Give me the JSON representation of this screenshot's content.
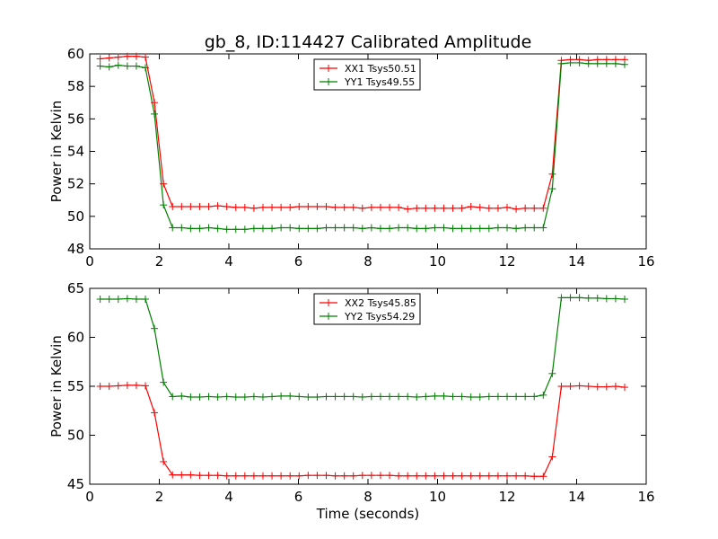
{
  "figure": {
    "title": "gb_8, ID:114427 Calibrated Amplitude"
  },
  "colors": {
    "red": "#ff0000",
    "green": "#008000"
  },
  "chart_data": [
    {
      "type": "line",
      "title": "gb_8, ID:114427 Calibrated Amplitude",
      "xlabel": "",
      "ylabel": "Power in Kelvin",
      "xlim": [
        0,
        16
      ],
      "ylim": [
        48,
        60
      ],
      "xticks": [
        0,
        2,
        4,
        6,
        8,
        10,
        12,
        14,
        16
      ],
      "yticks": [
        48,
        50,
        52,
        54,
        56,
        58,
        60
      ],
      "grid": false,
      "legend_position": "top-center",
      "x": [
        0.3,
        0.56,
        0.82,
        1.08,
        1.34,
        1.6,
        1.86,
        2.12,
        2.38,
        2.64,
        2.9,
        3.16,
        3.42,
        3.68,
        3.94,
        4.2,
        4.46,
        4.72,
        4.98,
        5.24,
        5.5,
        5.76,
        6.02,
        6.28,
        6.54,
        6.8,
        7.06,
        7.32,
        7.58,
        7.84,
        8.1,
        8.36,
        8.62,
        8.88,
        9.14,
        9.4,
        9.66,
        9.92,
        10.18,
        10.44,
        10.7,
        10.96,
        11.22,
        11.48,
        11.74,
        12.0,
        12.26,
        12.52,
        12.78,
        13.04,
        13.3,
        13.56,
        13.82,
        14.08,
        14.34,
        14.6,
        14.86,
        15.12,
        15.38
      ],
      "series": [
        {
          "name": "XX1 Tsys50.51",
          "color": "red",
          "values": [
            59.7,
            59.75,
            59.8,
            59.85,
            59.85,
            59.8,
            57.0,
            52.0,
            50.6,
            50.6,
            50.6,
            50.6,
            50.6,
            50.65,
            50.6,
            50.55,
            50.55,
            50.5,
            50.55,
            50.55,
            50.55,
            50.55,
            50.6,
            50.6,
            50.6,
            50.6,
            50.55,
            50.55,
            50.55,
            50.5,
            50.55,
            50.55,
            50.55,
            50.55,
            50.45,
            50.5,
            50.5,
            50.5,
            50.5,
            50.5,
            50.5,
            50.6,
            50.55,
            50.5,
            50.5,
            50.55,
            50.45,
            50.5,
            50.5,
            50.5,
            52.6,
            59.6,
            59.65,
            59.65,
            59.6,
            59.65,
            59.65,
            59.65,
            59.65
          ]
        },
        {
          "name": "YY1 Tsys49.55",
          "color": "green",
          "values": [
            59.25,
            59.2,
            59.3,
            59.25,
            59.25,
            59.15,
            56.3,
            50.7,
            49.3,
            49.3,
            49.25,
            49.25,
            49.3,
            49.25,
            49.2,
            49.2,
            49.2,
            49.25,
            49.25,
            49.25,
            49.3,
            49.3,
            49.25,
            49.25,
            49.25,
            49.3,
            49.3,
            49.3,
            49.3,
            49.25,
            49.3,
            49.25,
            49.25,
            49.3,
            49.3,
            49.25,
            49.25,
            49.3,
            49.3,
            49.25,
            49.25,
            49.25,
            49.25,
            49.25,
            49.3,
            49.3,
            49.25,
            49.3,
            49.3,
            49.3,
            51.7,
            59.4,
            59.45,
            59.45,
            59.4,
            59.4,
            59.4,
            59.4,
            59.35
          ]
        }
      ]
    },
    {
      "type": "line",
      "title": "",
      "xlabel": "Time (seconds)",
      "ylabel": "Power in Kelvin",
      "xlim": [
        0,
        16
      ],
      "ylim": [
        45,
        65
      ],
      "xticks": [
        0,
        2,
        4,
        6,
        8,
        10,
        12,
        14,
        16
      ],
      "yticks": [
        45,
        50,
        55,
        60,
        65
      ],
      "grid": false,
      "legend_position": "top-center",
      "x": [
        0.3,
        0.56,
        0.82,
        1.08,
        1.34,
        1.6,
        1.86,
        2.12,
        2.38,
        2.64,
        2.9,
        3.16,
        3.42,
        3.68,
        3.94,
        4.2,
        4.46,
        4.72,
        4.98,
        5.24,
        5.5,
        5.76,
        6.02,
        6.28,
        6.54,
        6.8,
        7.06,
        7.32,
        7.58,
        7.84,
        8.1,
        8.36,
        8.62,
        8.88,
        9.14,
        9.4,
        9.66,
        9.92,
        10.18,
        10.44,
        10.7,
        10.96,
        11.22,
        11.48,
        11.74,
        12.0,
        12.26,
        12.52,
        12.78,
        13.04,
        13.3,
        13.56,
        13.82,
        14.08,
        14.34,
        14.6,
        14.86,
        15.12,
        15.38
      ],
      "series": [
        {
          "name": "XX2 Tsys45.85",
          "color": "red",
          "values": [
            55.0,
            55.0,
            55.05,
            55.1,
            55.1,
            55.05,
            52.3,
            47.3,
            45.95,
            45.95,
            45.95,
            45.9,
            45.9,
            45.9,
            45.85,
            45.85,
            45.85,
            45.85,
            45.85,
            45.85,
            45.85,
            45.85,
            45.85,
            45.9,
            45.9,
            45.9,
            45.85,
            45.85,
            45.85,
            45.9,
            45.9,
            45.9,
            45.9,
            45.85,
            45.85,
            45.85,
            45.85,
            45.85,
            45.85,
            45.85,
            45.85,
            45.85,
            45.85,
            45.85,
            45.85,
            45.85,
            45.85,
            45.85,
            45.8,
            45.8,
            47.8,
            55.0,
            55.0,
            55.05,
            55.0,
            54.95,
            54.95,
            55.0,
            54.9
          ]
        },
        {
          "name": "YY2 Tsys54.29",
          "color": "green",
          "values": [
            63.9,
            63.9,
            63.9,
            63.95,
            63.9,
            63.9,
            60.9,
            55.4,
            53.95,
            54.0,
            53.9,
            53.9,
            53.95,
            53.9,
            53.95,
            53.9,
            53.9,
            53.95,
            53.9,
            53.95,
            54.0,
            54.0,
            53.95,
            53.9,
            53.9,
            53.95,
            53.95,
            53.95,
            53.95,
            53.9,
            53.95,
            53.95,
            53.95,
            53.95,
            53.95,
            53.9,
            53.95,
            54.0,
            54.0,
            53.95,
            53.95,
            53.9,
            53.9,
            53.95,
            53.95,
            53.95,
            53.95,
            53.95,
            53.95,
            54.1,
            56.3,
            64.05,
            64.05,
            64.05,
            64.0,
            64.0,
            63.95,
            63.95,
            63.9
          ]
        }
      ]
    }
  ]
}
